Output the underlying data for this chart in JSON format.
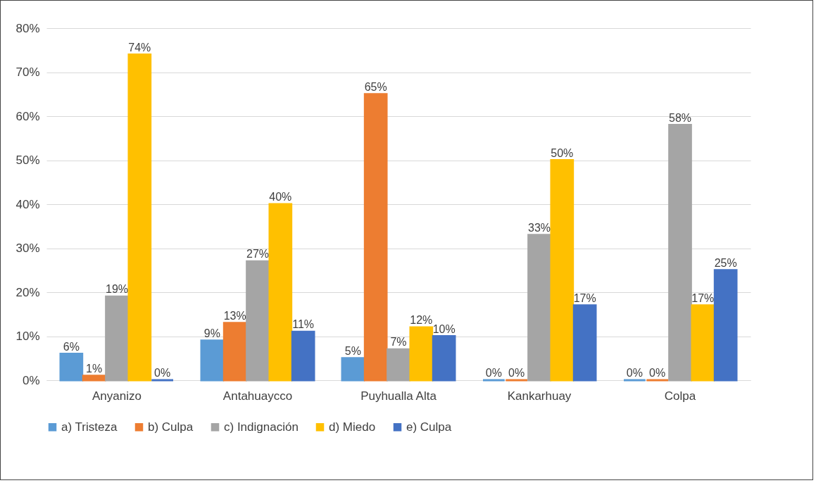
{
  "chart_data": {
    "type": "bar",
    "categories": [
      "Anyanizo",
      "Antahuaycco",
      "Puyhualla Alta",
      "Kankarhuay",
      "Colpa"
    ],
    "series": [
      {
        "name": "a) Tristeza",
        "color": "#5b9bd5",
        "values": [
          6,
          9,
          5,
          0,
          0
        ],
        "value_labels": [
          "6%",
          "9%",
          "5%",
          "0%",
          "0%"
        ]
      },
      {
        "name": "b) Culpa",
        "color": "#ed7d31",
        "values": [
          1,
          13,
          65,
          0,
          0
        ],
        "value_labels": [
          "1%",
          "13%",
          "65%",
          "0%",
          "0%"
        ]
      },
      {
        "name": "c) Indignación",
        "color": "#a5a5a5",
        "values": [
          19,
          27,
          7,
          33,
          58
        ],
        "value_labels": [
          "19%",
          "27%",
          "7%",
          "33%",
          "58%"
        ]
      },
      {
        "name": "d) Miedo",
        "color": "#ffc000",
        "values": [
          74,
          40,
          12,
          50,
          17
        ],
        "value_labels": [
          "74%",
          "40%",
          "12%",
          "50%",
          "17%"
        ]
      },
      {
        "name": "e) Culpa",
        "color": "#4472c4",
        "values": [
          0,
          11,
          10,
          17,
          25
        ],
        "value_labels": [
          "0%",
          "11%",
          "10%",
          "17%",
          "25%"
        ]
      }
    ],
    "ylim": [
      0,
      80
    ],
    "yticks": [
      {
        "value": 0,
        "label": "0%"
      },
      {
        "value": 10,
        "label": "10%"
      },
      {
        "value": 20,
        "label": "20%"
      },
      {
        "value": 30,
        "label": "30%"
      },
      {
        "value": 40,
        "label": "40%"
      },
      {
        "value": 50,
        "label": "50%"
      },
      {
        "value": 60,
        "label": "60%"
      },
      {
        "value": 70,
        "label": "70%"
      },
      {
        "value": 80,
        "label": "80%"
      }
    ],
    "grid": "y",
    "legend": "bottom"
  }
}
